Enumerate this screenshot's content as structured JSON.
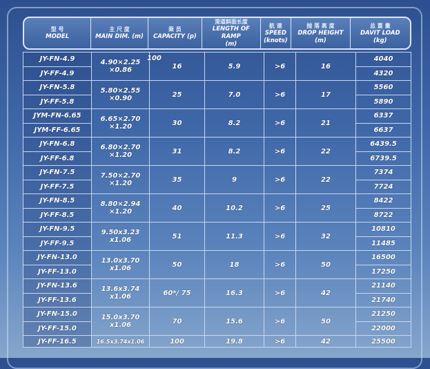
{
  "header": [
    {
      "cn": "型 号",
      "en": "MODEL"
    },
    {
      "cn": "主 尺 度",
      "en": "MAIN DIM. (m)"
    },
    {
      "cn": "乘 员",
      "en": "CAPACITY (p)"
    },
    {
      "cn": "滑道斜面长度",
      "en": "LENGTH OF RAMP",
      "unit": "(m)"
    },
    {
      "cn": "航 速",
      "en": "SPEED",
      "unit": "(knots)"
    },
    {
      "cn": "抛 落 高 度",
      "en": "DROP HEIGHT",
      "unit": "(m)"
    },
    {
      "cn": "总 重 量",
      "en": "DAVIT LOAD",
      "unit": "(kg)"
    }
  ],
  "groups": [
    {
      "models": [
        "JY-FN-4.9",
        "JY-FF-4.9"
      ],
      "dim": [
        "4.90×2.25",
        "×0.86"
      ],
      "capacity": "16",
      "capacity_note": "100",
      "ramp": "5.9",
      "speed": ">6",
      "drop": "16",
      "load": [
        "4040",
        "4320"
      ]
    },
    {
      "models": [
        "JY-FN-5.8",
        "JY-FF-5.8"
      ],
      "dim": [
        "5.80×2.55",
        "×0.90"
      ],
      "capacity": "25",
      "ramp": "7.0",
      "speed": ">6",
      "drop": "17",
      "load": [
        "5560",
        "5890"
      ]
    },
    {
      "models": [
        "JYM-FN-6.65",
        "JYM-FF-6.65"
      ],
      "dim": [
        "6.65×2.70",
        "×1.20"
      ],
      "capacity": "30",
      "ramp": "8.2",
      "speed": ">6",
      "drop": "21",
      "load": [
        "6337",
        "6637"
      ]
    },
    {
      "models": [
        "JY-FN-6.8",
        "JY-FF-6.8"
      ],
      "dim": [
        "6.80×2.70",
        "×1.20"
      ],
      "capacity": "31",
      "ramp": "8.2",
      "speed": ">6",
      "drop": "22",
      "load": [
        "6439.5",
        "6739.5"
      ]
    },
    {
      "models": [
        "JY-FN-7.5",
        "JY-FF-7.5"
      ],
      "dim": [
        "7.50×2.70",
        "×1.20"
      ],
      "capacity": "35",
      "ramp": "9",
      "speed": ">6",
      "drop": "22",
      "load": [
        "7374",
        "7724"
      ]
    },
    {
      "models": [
        "JY-FN-8.5",
        "JY-FF-8.5"
      ],
      "dim": [
        "8.80×2.94",
        "×1.20"
      ],
      "capacity": "40",
      "ramp": "10.2",
      "speed": ">6",
      "drop": "25",
      "load": [
        "8422",
        "8722"
      ]
    },
    {
      "models": [
        "JY-FN-9.5",
        "JY-FF-9.5"
      ],
      "dim": [
        "9.50x3.23",
        "x1.06"
      ],
      "capacity": "51",
      "ramp": "11.3",
      "speed": ">6",
      "drop": "32",
      "load": [
        "10810",
        "11485"
      ]
    },
    {
      "models": [
        "JY-FN-13.0",
        "JY-FF-13.0"
      ],
      "dim": [
        "13.0x3.70",
        "x1.06"
      ],
      "capacity": "50",
      "ramp": "18",
      "speed": ">6",
      "drop": "50",
      "load": [
        "16500",
        "17250"
      ]
    },
    {
      "models": [
        "JY-FN-13.6",
        "JY-FF-13.6"
      ],
      "dim": [
        "13.6x3.74",
        "x1.06"
      ],
      "capacity": "60*/ 75",
      "ramp": "16.3",
      "speed": ">6",
      "drop": "42",
      "load": [
        "21140",
        "21740"
      ]
    },
    {
      "models": [
        "JY-FN-15.0",
        "JY-FF-15.0"
      ],
      "dim": [
        "15.0x3.70",
        "x1.06"
      ],
      "capacity": "70",
      "ramp": "15.6",
      "speed": ">6",
      "drop": "50",
      "load": [
        "21250",
        "22000"
      ]
    },
    {
      "models": [
        "JY-FF-16.5"
      ],
      "dim": [
        "16.5x3.74x1.06"
      ],
      "capacity": "100",
      "ramp": "19.8",
      "speed": ">6",
      "drop": "42",
      "load": [
        "25500"
      ]
    }
  ]
}
